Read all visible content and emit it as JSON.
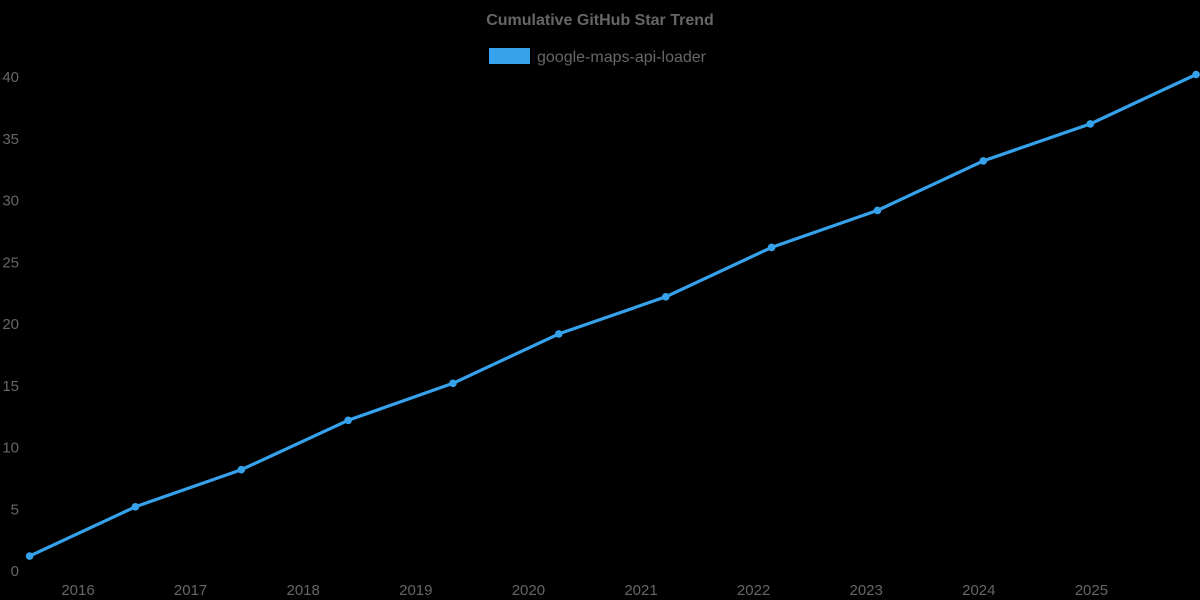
{
  "page": {
    "background_color": "#000000",
    "text_color": "#666666"
  },
  "chart": {
    "title": "Cumulative GitHub Star Trend",
    "legend": {
      "items": [
        {
          "label": "google-maps-api-loader",
          "swatch_color": "#36A2EB"
        }
      ],
      "position": "top"
    }
  },
  "chart_data": {
    "type": "line",
    "title": "Cumulative GitHub Star Trend",
    "series": [
      {
        "name": "google-maps-api-loader",
        "color": "#36A2EB",
        "x": [
          2015.57,
          2016.51,
          2017.45,
          2018.4,
          2019.33,
          2020.27,
          2021.22,
          2022.16,
          2023.1,
          2024.04,
          2024.99,
          2025.93
        ],
        "values": [
          1,
          5,
          8,
          12,
          15,
          19,
          22,
          26,
          29,
          33,
          36,
          40
        ]
      }
    ],
    "x_type": "time-years-decimal",
    "x_ticks": [
      2016,
      2017,
      2018,
      2019,
      2020,
      2021,
      2022,
      2023,
      2024,
      2025
    ],
    "y_ticks": [
      0,
      5,
      10,
      15,
      20,
      25,
      30,
      35,
      40
    ],
    "xlim": [
      2015.3,
      2025.96
    ],
    "ylim": [
      0,
      40
    ],
    "xlabel": "",
    "ylabel": "",
    "grid": false,
    "axis_lines": false,
    "legend_position": "top-center",
    "marker": "point",
    "line_width": 3.2,
    "text_color": "#666666",
    "background": "#000000"
  }
}
